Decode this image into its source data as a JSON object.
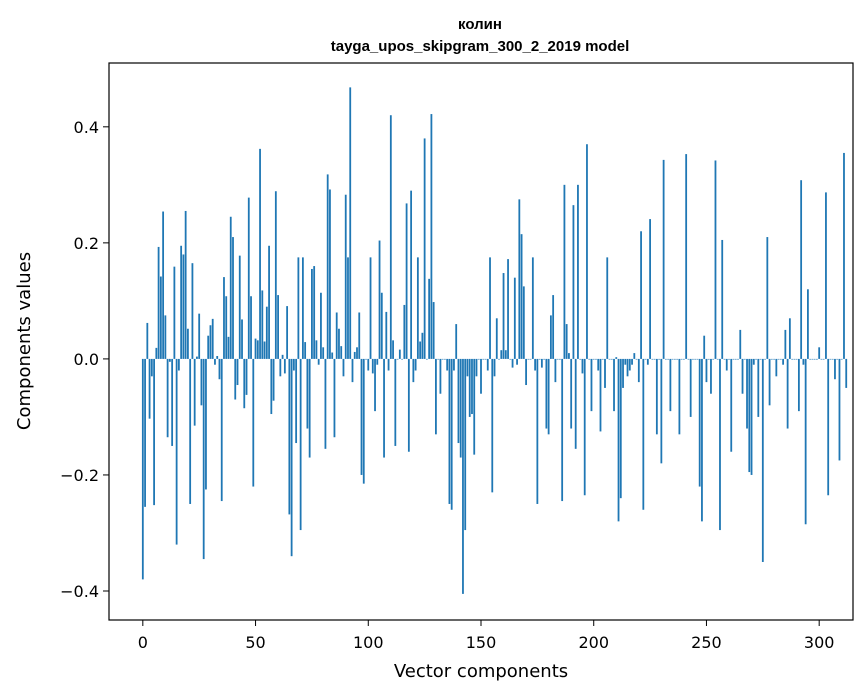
{
  "chart_data": {
    "type": "bar",
    "title_line1": "колин",
    "title_line2": "tayga_upos_skipgram_300_2_2019 model",
    "xlabel": "Vector components",
    "ylabel": "Components values",
    "xlim": [
      -15,
      315
    ],
    "ylim": [
      -0.45,
      0.51
    ],
    "xticks": [
      0,
      50,
      100,
      150,
      200,
      250,
      300
    ],
    "yticks": [
      -0.4,
      -0.2,
      0.0,
      0.2,
      0.4
    ],
    "ytick_labels": [
      "−0.4",
      "−0.2",
      "0.0",
      "0.2",
      "0.4"
    ],
    "bar_color": "#1f77b4",
    "values": [
      -0.38,
      -0.255,
      0.062,
      -0.103,
      -0.03,
      -0.252,
      0.019,
      0.193,
      0.142,
      0.254,
      0.075,
      -0.135,
      -0.005,
      -0.15,
      0.159,
      -0.32,
      -0.02,
      0.195,
      0.18,
      0.255,
      0.052,
      -0.25,
      0.165,
      -0.115,
      0.004,
      0.078,
      -0.08,
      -0.345,
      -0.225,
      0.04,
      0.058,
      0.069,
      -0.01,
      0.005,
      -0.035,
      -0.245,
      0.141,
      0.108,
      0.038,
      0.245,
      0.21,
      -0.07,
      -0.045,
      0.178,
      0.068,
      -0.085,
      -0.062,
      0.278,
      0.108,
      -0.22,
      0.035,
      0.032,
      0.362,
      0.118,
      0.03,
      0.09,
      0.195,
      -0.095,
      -0.072,
      0.289,
      0.11,
      -0.03,
      0.007,
      -0.025,
      0.091,
      -0.268,
      -0.34,
      -0.02,
      -0.145,
      0.175,
      -0.295,
      0.175,
      0.029,
      -0.12,
      -0.17,
      0.155,
      0.16,
      0.032,
      -0.01,
      0.114,
      0.02,
      -0.155,
      0.318,
      0.292,
      0.011,
      -0.135,
      0.08,
      0.052,
      0.022,
      -0.03,
      0.283,
      0.175,
      0.468,
      -0.04,
      0.012,
      0.02,
      0.08,
      -0.2,
      -0.215,
      0.0,
      -0.02,
      0.175,
      -0.025,
      -0.09,
      -0.01,
      0.204,
      0.114,
      -0.17,
      0.081,
      -0.02,
      0.42,
      0.032,
      -0.15,
      0.0,
      0.016,
      0.0,
      0.093,
      0.268,
      -0.16,
      0.29,
      -0.04,
      -0.02,
      0.175,
      0.03,
      0.045,
      0.38,
      0.0,
      0.138,
      0.422,
      0.098,
      -0.13,
      0.0,
      -0.06,
      0.0,
      0.0,
      -0.02,
      -0.25,
      -0.26,
      -0.02,
      0.06,
      -0.145,
      -0.17,
      -0.405,
      -0.295,
      -0.03,
      -0.1,
      -0.095,
      -0.165,
      -0.03,
      0.0,
      -0.06,
      0.0,
      0.0,
      -0.02,
      0.175,
      -0.23,
      -0.03,
      0.07,
      0.0,
      0.015,
      0.148,
      0.015,
      0.172,
      0.0,
      -0.015,
      0.14,
      -0.01,
      0.275,
      0.215,
      0.125,
      -0.045,
      0.0,
      0.0,
      0.175,
      -0.02,
      -0.25,
      0.0,
      -0.015,
      0.0,
      -0.12,
      -0.13,
      0.075,
      0.11,
      -0.04,
      0.0,
      0.0,
      -0.245,
      0.3,
      0.06,
      0.01,
      -0.12,
      0.265,
      -0.155,
      0.3,
      0.0,
      -0.025,
      -0.235,
      0.37,
      0.0,
      -0.09,
      0.0,
      0.0,
      -0.02,
      -0.125,
      0.0,
      -0.05,
      0.175,
      0.0,
      0.0,
      -0.09,
      0.003,
      -0.28,
      -0.24,
      -0.05,
      -0.01,
      -0.03,
      -0.02,
      -0.01,
      0.01,
      0.0,
      -0.04,
      0.22,
      -0.26,
      0.0,
      -0.01,
      0.241,
      0.0,
      0.0,
      -0.13,
      0.0,
      -0.18,
      0.343,
      0.0,
      0.0,
      -0.09,
      0.0,
      0.0,
      0.0,
      -0.13,
      0.0,
      0.0,
      0.353,
      0.0,
      -0.1,
      0.0,
      0.0,
      0.0,
      -0.22,
      -0.28,
      0.04,
      -0.04,
      0.0,
      -0.06,
      0.0,
      0.342,
      0.0,
      -0.295,
      0.205,
      0.0,
      -0.02,
      0.0,
      -0.16,
      0.0,
      0.0,
      0.0,
      0.05,
      -0.06,
      0.0,
      -0.12,
      -0.195,
      -0.2,
      -0.01,
      0.0,
      -0.1,
      0.0,
      -0.35,
      0.0,
      0.21,
      -0.08,
      0.0,
      0.0,
      -0.03,
      0.0,
      0.0,
      -0.01,
      0.05,
      -0.12,
      0.07,
      0.0,
      0.0,
      0.0,
      -0.09,
      0.308,
      -0.01,
      -0.285,
      0.12,
      0.0,
      0.0,
      0.0,
      0.0,
      0.02,
      0.0,
      0.0,
      0.287,
      -0.235,
      0.0,
      0.0,
      -0.035,
      0.0,
      -0.175,
      0.0,
      0.355,
      -0.05
    ]
  }
}
